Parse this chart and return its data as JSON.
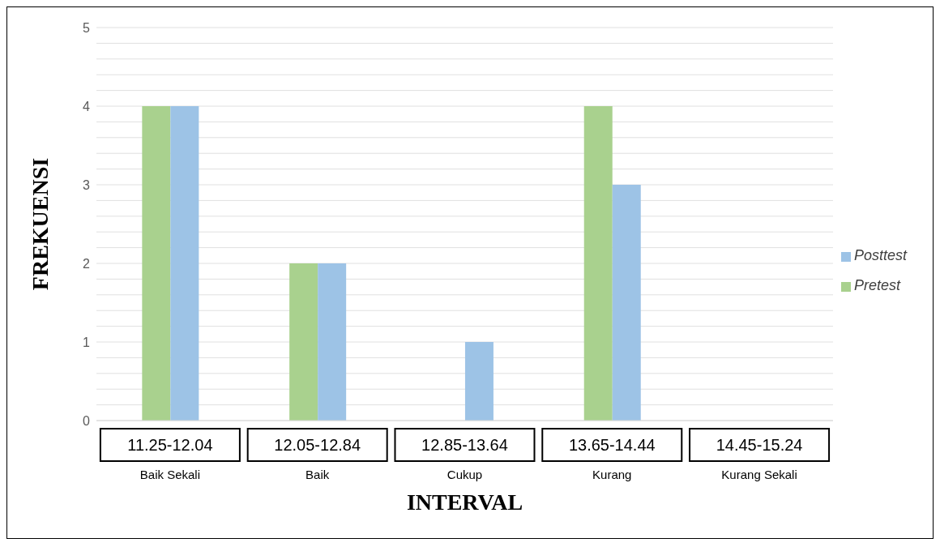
{
  "chart_data": {
    "type": "bar",
    "xlabel": "INTERVAL",
    "ylabel": "FREKUENSI",
    "categories": [
      "11.25-12.04\nBaik Sekali",
      "12.05-12.84\nBaik",
      "12.85-13.64\nCukup",
      "13.65-14.44\nKurang",
      "14.45-15.24\nKurang Sekali"
    ],
    "series": [
      {
        "name": "Pretest",
        "color": "#a9d18e",
        "values": [
          4,
          2,
          0,
          4,
          0
        ]
      },
      {
        "name": "Posttest",
        "color": "#9dc3e6",
        "values": [
          4,
          2,
          1,
          3,
          0
        ]
      }
    ],
    "ylim": [
      0,
      5
    ],
    "yticks": [
      0,
      {
        "value": 0.2,
        "label": null
      },
      {
        "value": 0.4,
        "label": null
      },
      {
        "value": 0.6,
        "label": null
      },
      {
        "value": 0.8,
        "label": null
      },
      1,
      {
        "value": 1.2,
        "label": null
      },
      {
        "value": 1.4,
        "label": null
      },
      {
        "value": 1.6,
        "label": null
      },
      {
        "value": 1.8,
        "label": null
      },
      2,
      {
        "value": 2.2,
        "label": null
      },
      {
        "value": 2.4,
        "label": null
      },
      {
        "value": 2.6,
        "label": null
      },
      {
        "value": 2.8,
        "label": null
      },
      3,
      {
        "value": 3.2,
        "label": null
      },
      {
        "value": 3.4,
        "label": null
      },
      {
        "value": 3.6,
        "label": null
      },
      {
        "value": 3.8,
        "label": null
      },
      4,
      {
        "value": 4.2,
        "label": null
      },
      {
        "value": 4.4,
        "label": null
      },
      {
        "value": 4.6,
        "label": null
      },
      {
        "value": 4.8,
        "label": null
      },
      5
    ],
    "grid": "y",
    "legend": "right"
  }
}
